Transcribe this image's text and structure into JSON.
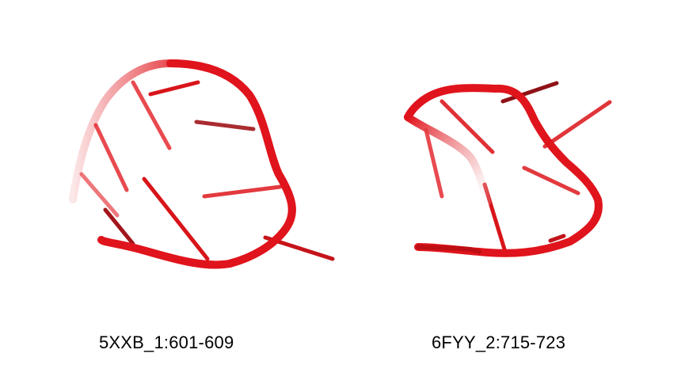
{
  "colors": {
    "backbone": "#e0141c",
    "backbone_dark": "#b50d12",
    "base": "#d8151a",
    "background": "#ffffff"
  },
  "structures": [
    {
      "id": "left",
      "label": "5XXB_1:601-609"
    },
    {
      "id": "right",
      "label": "6FYY_2:715-723"
    }
  ]
}
